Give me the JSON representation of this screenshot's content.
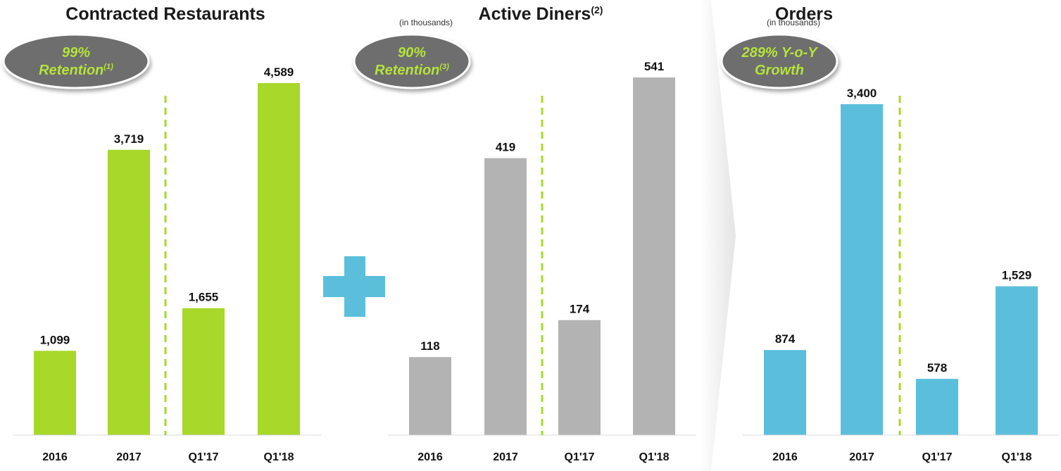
{
  "chart_data": [
    {
      "type": "bar",
      "title": "Contracted Restaurants",
      "subtitle": "",
      "badge": {
        "lines": [
          "99%",
          "Retention"
        ],
        "footnote": "(1)"
      },
      "categories": [
        "2016",
        "2017",
        "Q1'17",
        "Q1'18"
      ],
      "values": [
        1099,
        3719,
        1655,
        4589
      ],
      "value_labels": [
        "1,099",
        "3,719",
        "1,655",
        "4,589"
      ],
      "ylim": [
        0,
        4589
      ],
      "bar_color": "#a8d82a",
      "divider_after_index": 1
    },
    {
      "type": "bar",
      "title": "Active Diners",
      "title_footnote": "(2)",
      "subtitle": "(in thousands)",
      "badge": {
        "lines": [
          "90%",
          "Retention"
        ],
        "footnote": "(3)"
      },
      "categories": [
        "2016",
        "2017",
        "Q1'17",
        "Q1'18"
      ],
      "values": [
        118,
        419,
        174,
        541
      ],
      "value_labels": [
        "118",
        "419",
        "174",
        "541"
      ],
      "ylim": [
        0,
        541
      ],
      "bar_color": "#b3b3b3",
      "divider_after_index": 1
    },
    {
      "type": "bar",
      "title": "Orders",
      "subtitle": "(in thousands)",
      "badge": {
        "lines": [
          "289% Y-o-Y",
          "Growth"
        ],
        "footnote": ""
      },
      "categories": [
        "2016",
        "2017",
        "Q1'17",
        "Q1'18"
      ],
      "values": [
        874,
        3400,
        578,
        1529
      ],
      "value_labels": [
        "874",
        "3,400",
        "578",
        "1,529"
      ],
      "ylim": [
        0,
        3400
      ],
      "bar_color": "#5bbfdc",
      "divider_after_index": 1
    }
  ],
  "colors": {
    "badge_fill": "#6e6e6e",
    "badge_text": "#b5e33b",
    "divider": "#a8d82a",
    "plus": "#5bbfdc",
    "arrow": "#f0f0f0"
  },
  "icons": {
    "plus": "plus-icon",
    "arrow": "chevron-right-arrow-icon"
  }
}
